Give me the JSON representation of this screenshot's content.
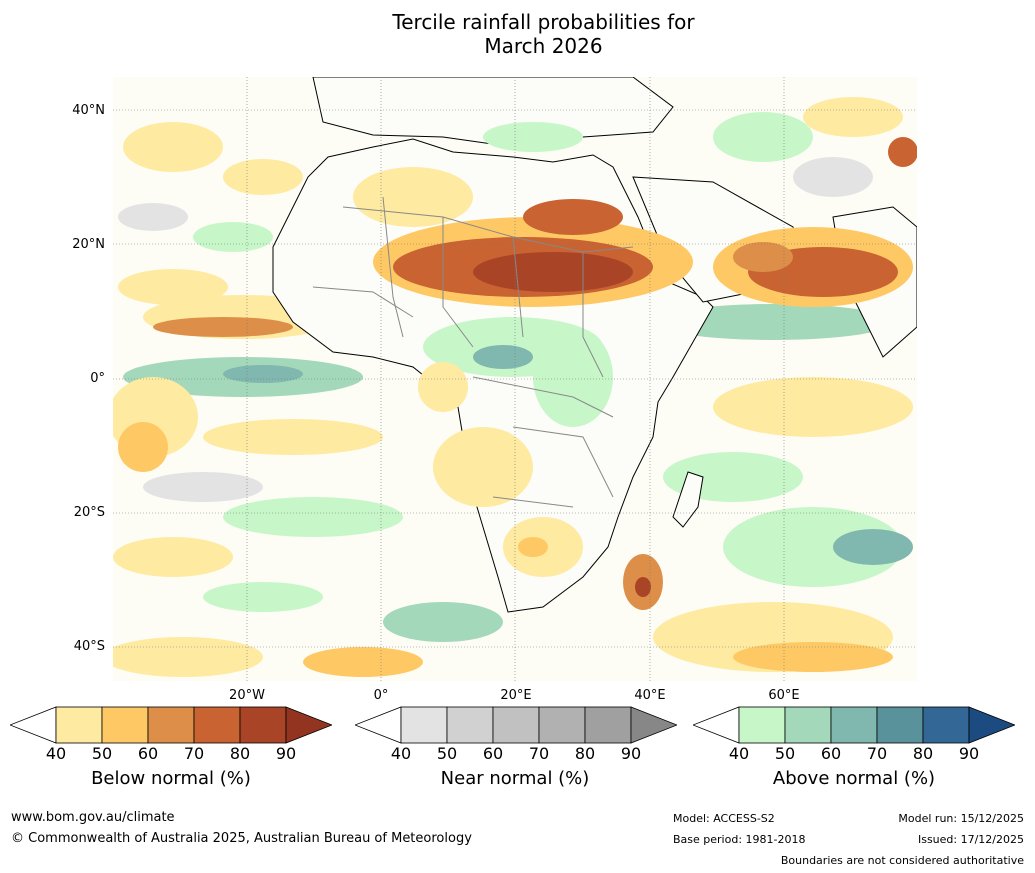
{
  "title_line1": "Tercile rainfall probabilities for",
  "title_line2": "March 2026",
  "lat_labels": [
    "40°N",
    "20°N",
    "0°",
    "20°S",
    "40°S"
  ],
  "lon_labels": [
    "20°W",
    "0°",
    "20°E",
    "40°E",
    "60°E"
  ],
  "colorbars": [
    {
      "label": "Below normal (%)",
      "ticks": [
        "40",
        "50",
        "60",
        "70",
        "80",
        "90"
      ],
      "colors": [
        "#ffffff",
        "#feeaa0",
        "#fec965",
        "#dd8f4a",
        "#c96331",
        "#a94427",
        "#923420"
      ]
    },
    {
      "label": "Near normal (%)",
      "ticks": [
        "40",
        "50",
        "60",
        "70",
        "80",
        "90"
      ],
      "colors": [
        "#ffffff",
        "#e3e3e3",
        "#d1d1d1",
        "#c1c1c1",
        "#b1b1b1",
        "#a0a0a0",
        "#878787"
      ]
    },
    {
      "label": "Above normal (%)",
      "ticks": [
        "40",
        "50",
        "60",
        "70",
        "80",
        "90"
      ],
      "colors": [
        "#ffffff",
        "#c7f7c9",
        "#a4d8ba",
        "#80b7af",
        "#5a929c",
        "#336796",
        "#1b4b80"
      ]
    }
  ],
  "footer": {
    "website": "www.bom.gov.au/climate",
    "copyright": "© Commonwealth of Australia 2025, Australian Bureau of Meteorology",
    "model": "Model: ACCESS-S2",
    "base_period": "Base period: 1981-2018",
    "model_run": "Model run: 15/12/2025",
    "issued": "Issued: 17/12/2025",
    "boundaries_note": "Boundaries are not considered authoritative"
  }
}
